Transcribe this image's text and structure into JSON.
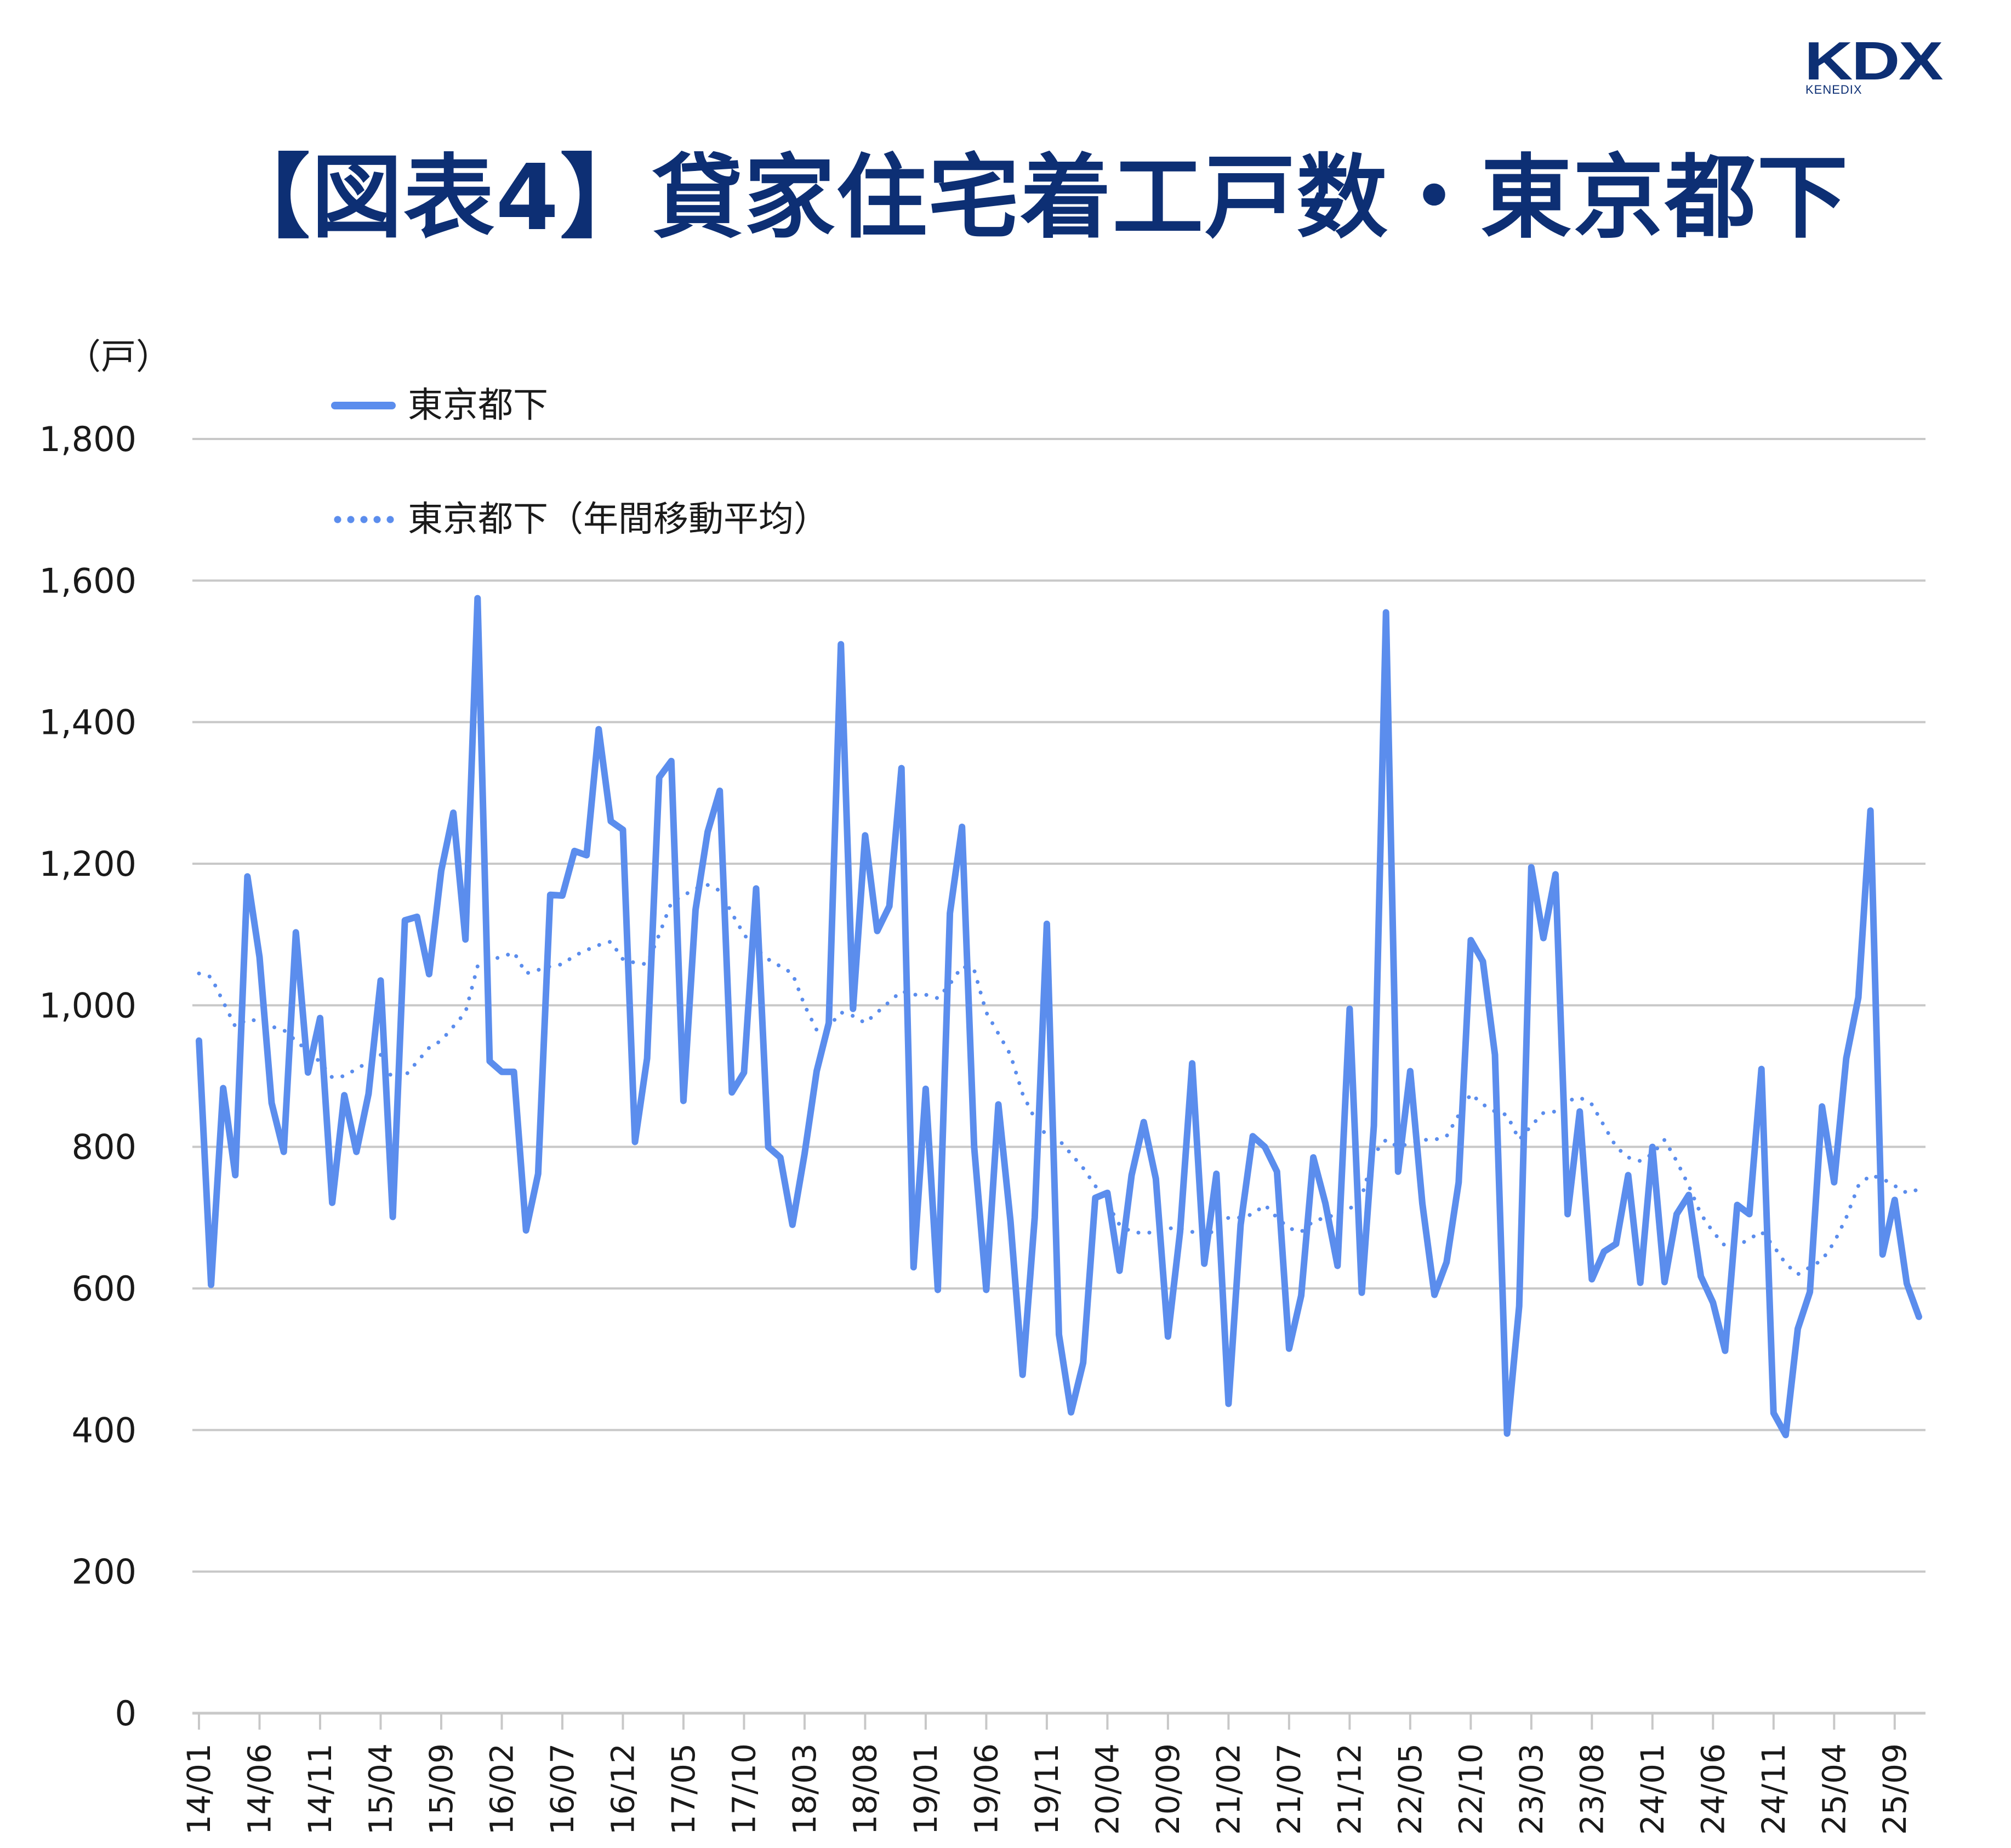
{
  "logo": {
    "main": "KDX",
    "sub": "KENEDIX"
  },
  "header": {
    "title": "【図表4】貸家住宅着工戸数・東京都下"
  },
  "axis": {
    "unit_label": "（戸）"
  },
  "legend": {
    "solid_label": "東京都下",
    "dotted_label": "東京都下（年間移動平均）"
  },
  "colors": {
    "series": "#5b8ded",
    "title": "#0d2f74",
    "grid": "#c8c8c8"
  },
  "chart_data": {
    "type": "line",
    "title": "【図表4】貸家住宅着工戸数・東京都下",
    "xlabel": "",
    "ylabel": "（戸）",
    "ylim": [
      0,
      1800
    ],
    "yticks": [
      0,
      200,
      400,
      600,
      800,
      1000,
      1200,
      1400,
      1600,
      1800
    ],
    "ytick_labels": [
      "0",
      "200",
      "400",
      "600",
      "800",
      "1,000",
      "1,200",
      "1,400",
      "1,600",
      "1,800"
    ],
    "grid": true,
    "legend_position": "top-left",
    "x_tick_labels": [
      "14/01",
      "14/06",
      "14/11",
      "15/04",
      "15/09",
      "16/02",
      "16/07",
      "16/12",
      "17/05",
      "17/10",
      "18/03",
      "18/08",
      "19/01",
      "19/06",
      "19/11",
      "20/04",
      "20/09",
      "21/02",
      "21/07",
      "21/12",
      "22/05",
      "22/10",
      "23/03",
      "23/08",
      "24/01",
      "24/06",
      "24/11",
      "25/04",
      "25/09"
    ],
    "x_start": "14/01",
    "x_end": "25/11",
    "series": [
      {
        "name": "東京都下",
        "style": "solid",
        "values": [
          950,
          605,
          883,
          760,
          1182,
          1068,
          862,
          793,
          1103,
          905,
          982,
          721,
          873,
          793,
          875,
          1035,
          701,
          1120,
          1125,
          1044,
          1190,
          1272,
          1093,
          1575,
          921,
          906,
          906,
          682,
          762,
          1156,
          1155,
          1218,
          1212,
          1390,
          1260,
          1248,
          807,
          925,
          1322,
          1345,
          865,
          1135,
          1245,
          1303,
          877,
          905,
          1165,
          800,
          785,
          690,
          790,
          907,
          975,
          1510,
          995,
          1240,
          1105,
          1140,
          1335,
          630,
          882,
          598,
          1130,
          1252,
          800,
          598,
          860,
          695,
          478,
          700,
          1115,
          535,
          425,
          495,
          728,
          735,
          625,
          760,
          835,
          755,
          532,
          680,
          918,
          635,
          762,
          437,
          690,
          815,
          800,
          765,
          515,
          590,
          785,
          720,
          632,
          995,
          594,
          830,
          1555,
          765,
          907,
          720,
          591,
          637,
          750,
          1092,
          1062,
          930,
          395,
          575,
          1195,
          1095,
          1185,
          705,
          850,
          613,
          652,
          663,
          760,
          608,
          800,
          609,
          705,
          732,
          617,
          580,
          512,
          718,
          705,
          910,
          424,
          393,
          543,
          595,
          857,
          750,
          925,
          1011,
          1275,
          648,
          725,
          607,
          560
        ]
      },
      {
        "name": "東京都下（年間移動平均）",
        "style": "dotted",
        "values": [
          1045,
          1040,
          1005,
          970,
          980,
          978,
          970,
          965,
          950,
          935,
          920,
          898,
          900,
          910,
          920,
          930,
          895,
          900,
          920,
          940,
          950,
          970,
          990,
          1055,
          1065,
          1068,
          1075,
          1045,
          1050,
          1055,
          1058,
          1070,
          1078,
          1085,
          1090,
          1065,
          1060,
          1058,
          1100,
          1145,
          1155,
          1165,
          1170,
          1162,
          1130,
          1100,
          1080,
          1065,
          1055,
          1045,
          1000,
          965,
          970,
          990,
          985,
          975,
          990,
          1005,
          1020,
          1015,
          1015,
          1010,
          1030,
          1055,
          1050,
          990,
          960,
          930,
          875,
          840,
          815,
          810,
          790,
          770,
          745,
          720,
          690,
          680,
          678,
          680,
          685,
          685,
          680,
          672,
          685,
          700,
          700,
          705,
          718,
          700,
          685,
          680,
          695,
          700,
          705,
          712,
          730,
          790,
          810,
          800,
          805,
          810,
          810,
          815,
          845,
          875,
          860,
          850,
          845,
          810,
          830,
          848,
          850,
          865,
          870,
          860,
          830,
          800,
          785,
          780,
          790,
          810,
          780,
          745,
          705,
          680,
          660,
          660,
          670,
          680,
          660,
          635,
          620,
          630,
          640,
          665,
          700,
          745,
          760,
          755,
          745,
          735,
          740
        ]
      }
    ]
  }
}
